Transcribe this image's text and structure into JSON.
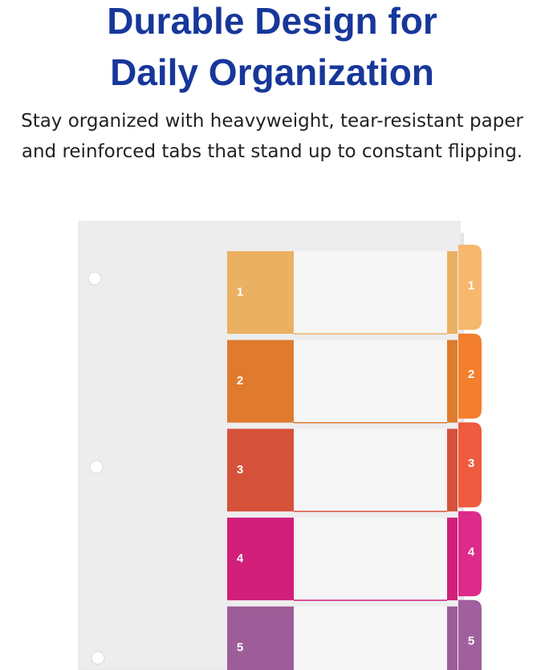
{
  "header": {
    "title_lines": [
      "Durable Design for",
      "Daily Organization"
    ],
    "subtitle_lines": [
      "Stay organized with heavyweight, tear-resistant paper",
      "and reinforced tabs that stand up to constant flipping."
    ]
  },
  "dividers": [
    {
      "label": "1",
      "color": "#ebb163",
      "tab_color": "#f6b86c"
    },
    {
      "label": "2",
      "color": "#e07b2e",
      "tab_color": "#f47f2c"
    },
    {
      "label": "3",
      "color": "#d6513a",
      "tab_color": "#ee5b3e"
    },
    {
      "label": "4",
      "color": "#d11f7a",
      "tab_color": "#de2a8a"
    },
    {
      "label": "5",
      "color": "#9d5d98",
      "tab_color": "#a0609e"
    }
  ]
}
